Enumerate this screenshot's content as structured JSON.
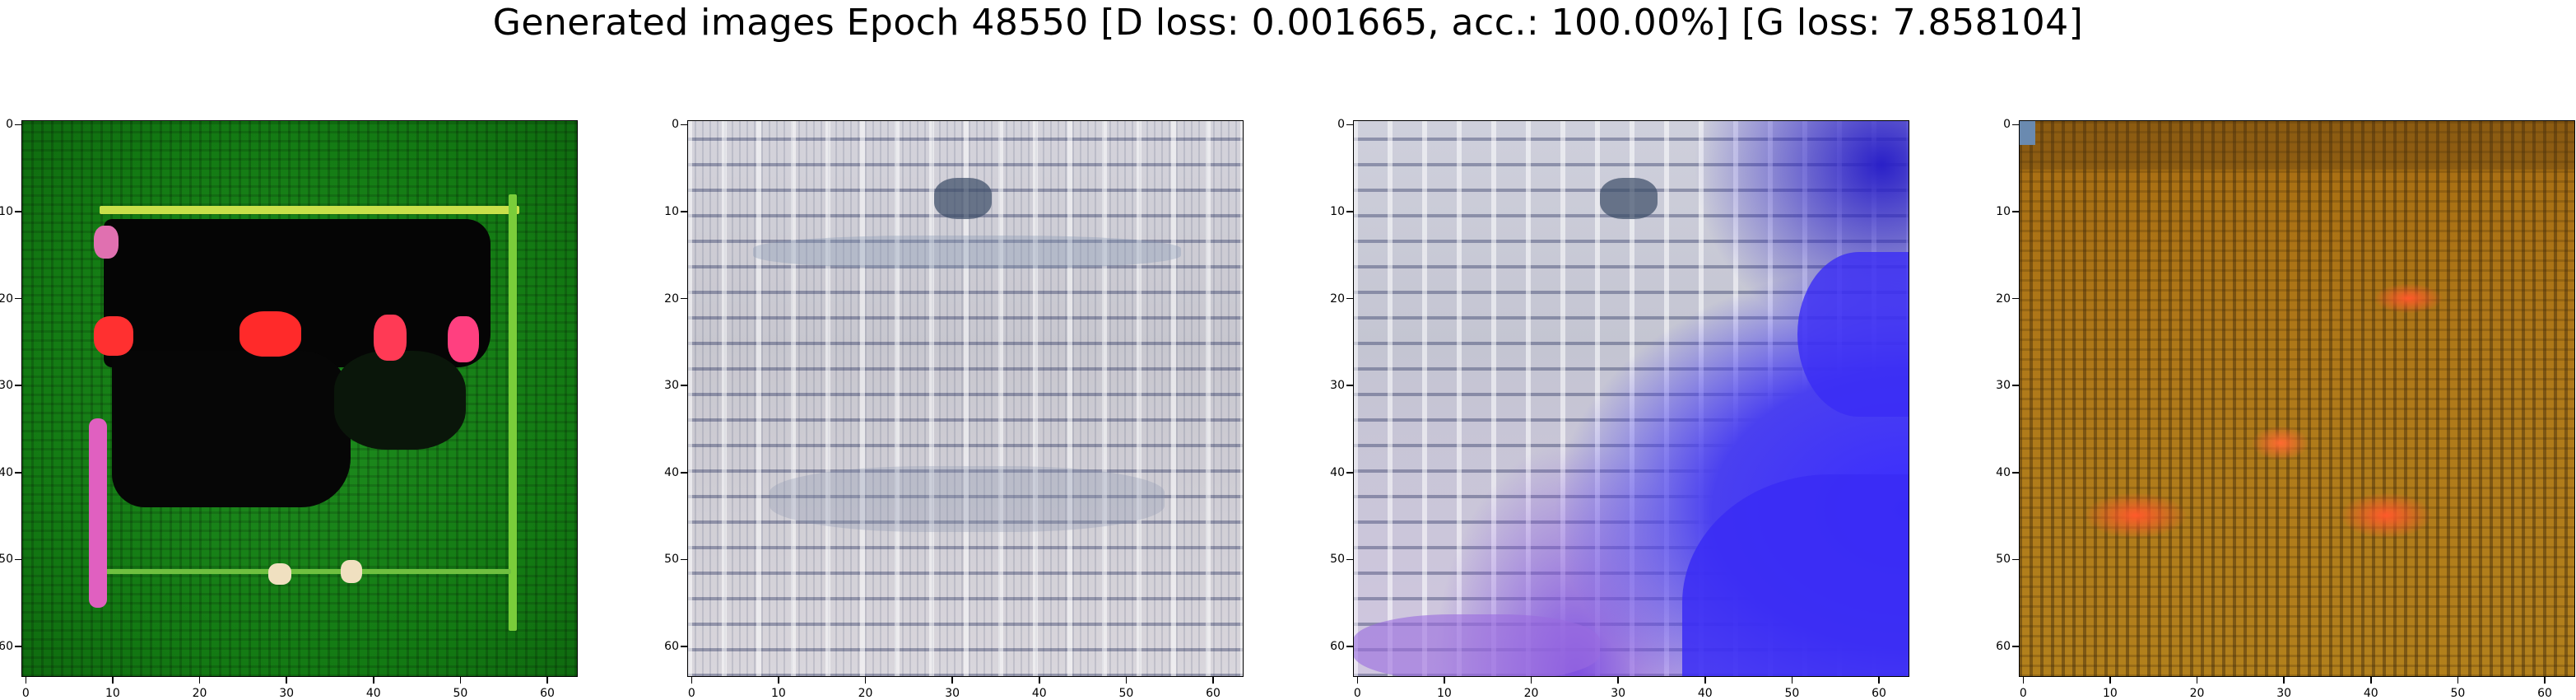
{
  "title": "Generated images Epoch 48550 [D loss: 0.001665, acc.: 100.00%] [G loss: 7.858104]",
  "axis": {
    "y_ticks": [
      "0",
      "10",
      "20",
      "30",
      "40",
      "50",
      "60"
    ],
    "x_ticks": [
      "0",
      "10",
      "20",
      "30",
      "40",
      "50",
      "60"
    ]
  },
  "panels": [
    {
      "name": "generated-image-1",
      "dominant_color": "#1a8a1a"
    },
    {
      "name": "generated-image-2",
      "dominant_color": "#cfcfd6"
    },
    {
      "name": "generated-image-3",
      "dominant_color": "#3a30f0"
    },
    {
      "name": "generated-image-4",
      "dominant_color": "#b07a1a"
    }
  ]
}
